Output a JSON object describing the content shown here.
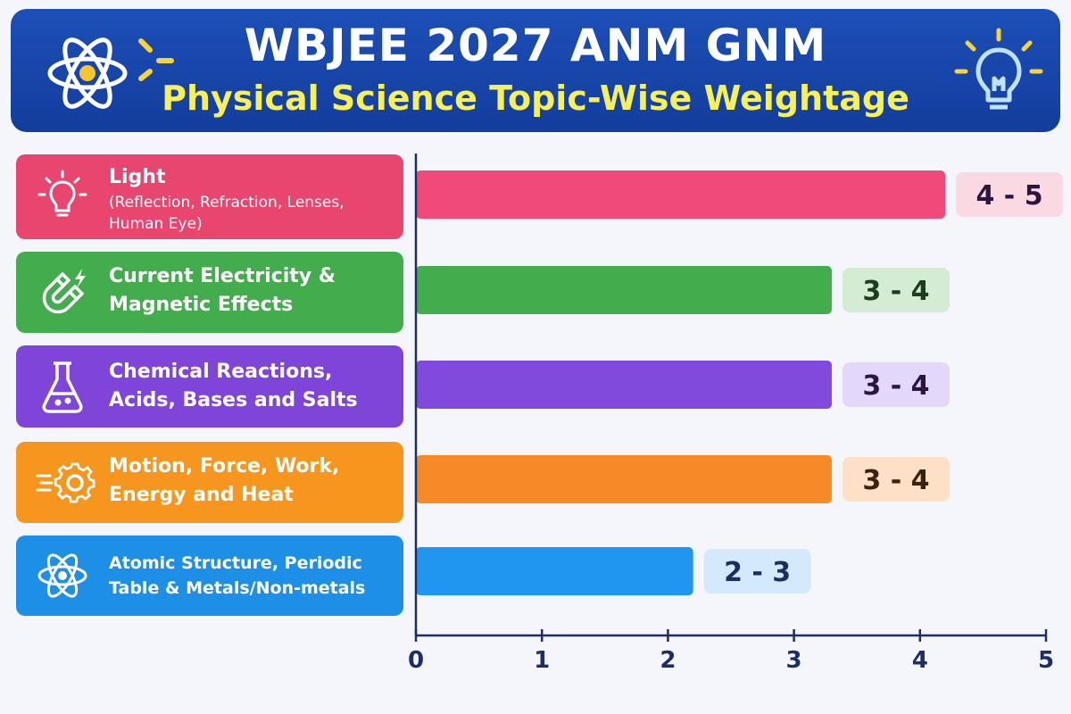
{
  "header": {
    "title": "WBJEE 2027 ANM GNM",
    "subtitle": "Physical Science Topic-Wise Weightage",
    "left_icon": "atom-icon",
    "right_icon": "lightbulb-icon"
  },
  "categories": [
    {
      "title": "Light",
      "subtitle": "(Reflection, Refraction, Lenses, Human Eye)",
      "icon": "lightbulb-icon",
      "color": "#e8456f"
    },
    {
      "title": "Current Electricity & Magnetic Effects",
      "subtitle": "",
      "icon": "magnet-icon",
      "color": "#43ad4e"
    },
    {
      "title": "Chemical Reactions, Acids, Bases and Salts",
      "subtitle": "",
      "icon": "flask-icon",
      "color": "#7e45d8"
    },
    {
      "title": "Motion, Force, Work, Energy and Heat",
      "subtitle": "",
      "icon": "gear-icon",
      "color": "#f7961f"
    },
    {
      "title": "Atomic Structure, Periodic Table & Metals/Non-metals",
      "subtitle": "",
      "icon": "atom-icon",
      "color": "#1e8fe6"
    }
  ],
  "chart_data": {
    "type": "bar",
    "orientation": "horizontal",
    "categories": [
      "Light",
      "Current Electricity & Magnetic Effects",
      "Chemical Reactions, Acids, Bases and Salts",
      "Motion, Force, Work, Energy and Heat",
      "Atomic Structure, Periodic Table & Metals/Non-metals"
    ],
    "values": [
      4.2,
      3.3,
      3.3,
      3.3,
      2.2
    ],
    "data_labels": [
      "4 - 5",
      "3 - 4",
      "3 - 4",
      "3 - 4",
      "2 - 3"
    ],
    "bar_colors": [
      "#ef4a78",
      "#43ad4e",
      "#8149dc",
      "#f78a26",
      "#2196f0"
    ],
    "label_bg_colors": [
      "#fbd9e2",
      "#d5ecd4",
      "#e4d8fa",
      "#fde0c6",
      "#d4eafc"
    ],
    "label_text_colors": [
      "#2a1640",
      "#1c3d1e",
      "#2a1640",
      "#3a2210",
      "#1a2f5e"
    ],
    "xlim": [
      0,
      5
    ],
    "xticks": [
      "0",
      "1",
      "2",
      "3",
      "4",
      "5"
    ],
    "axis_color": "#1b2d6b",
    "grid": false
  }
}
